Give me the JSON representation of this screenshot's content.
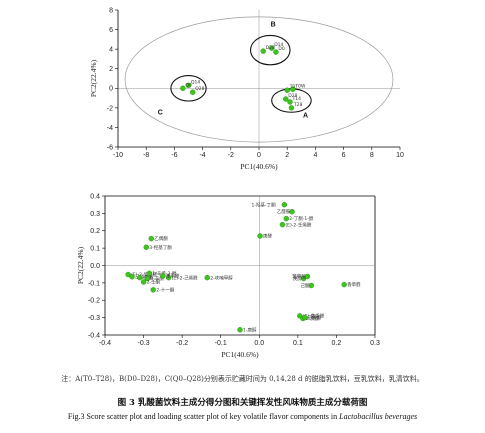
{
  "chart_data": [
    {
      "type": "scatter",
      "xlabel": "PC1(40.6%)",
      "ylabel": "PC2(22.4%)",
      "xlim": [
        -10,
        10
      ],
      "ylim": [
        -6,
        8
      ],
      "xticks": [
        "-10",
        "-8",
        "-6",
        "-4",
        "-2",
        "0",
        "2",
        "4",
        "6",
        "8",
        "10"
      ],
      "yticks": [
        "-6",
        "-4",
        "-2",
        "0",
        "2",
        "4",
        "6",
        "8"
      ],
      "groups": [
        {
          "label": "A",
          "points": [
            {
              "name": "T0W",
              "x": 2.4,
              "y": -0.1
            },
            {
              "name": "T0",
              "x": 2.0,
              "y": -0.2
            },
            {
              "name": "T14",
              "x": 2.2,
              "y": -1.4
            },
            {
              "name": "T28",
              "x": 2.3,
              "y": -2.0
            },
            {
              "name": "D28",
              "x": 1.9,
              "y": -1.1
            }
          ]
        },
        {
          "label": "B",
          "points": [
            {
              "name": "D14",
              "x": 0.9,
              "y": 4.1
            },
            {
              "name": "D0",
              "x": 1.2,
              "y": 3.7
            },
            {
              "name": "D28",
              "x": 0.3,
              "y": 3.8
            }
          ]
        },
        {
          "label": "C",
          "points": [
            {
              "name": "Q14",
              "x": -5.0,
              "y": 0.3
            },
            {
              "name": "Q0",
              "x": -5.4,
              "y": 0.0
            },
            {
              "name": "Q28",
              "x": -4.7,
              "y": -0.4
            }
          ]
        }
      ],
      "group_labels": [
        {
          "text": "A",
          "x": 3.3,
          "y": -3.0
        },
        {
          "text": "B",
          "x": 1.0,
          "y": 6.3
        },
        {
          "text": "C",
          "x": -7.0,
          "y": -2.7
        }
      ]
    },
    {
      "type": "scatter",
      "xlabel": "PC1(40.6%)",
      "ylabel": "PC2(22.4%)",
      "xlim": [
        -0.4,
        0.3
      ],
      "ylim": [
        -0.4,
        0.4
      ],
      "xticks": [
        "-0.4",
        "-0.3",
        "-0.2",
        "-0.1",
        "0.0",
        "0.1",
        "0.2",
        "0.3"
      ],
      "yticks": [
        "-0.4",
        "-0.3",
        "-0.2",
        "-0.1",
        "0.0",
        "0.1",
        "0.2",
        "0.3",
        "0.4"
      ],
      "points": [
        {
          "name": "1-羟基-丁酮",
          "x": 0.065,
          "y": 0.35
        },
        {
          "name": "乙醛胺",
          "x": 0.085,
          "y": 0.31
        },
        {
          "name": "2-丁酮-1-醇",
          "x": 0.07,
          "y": 0.27
        },
        {
          "name": "(E)-2-壬烯醛",
          "x": 0.06,
          "y": 0.235
        },
        {
          "name": "庚醛",
          "x": 0.002,
          "y": 0.17
        },
        {
          "name": "乙偶酮",
          "x": -0.28,
          "y": 0.155
        },
        {
          "name": "3-羟基丁酮",
          "x": -0.293,
          "y": 0.105
        },
        {
          "name": "(E)-2-癸烯醛",
          "x": -0.34,
          "y": -0.052
        },
        {
          "name": "己酸乙酯",
          "x": -0.33,
          "y": -0.065
        },
        {
          "name": "壬醛",
          "x": -0.31,
          "y": -0.07
        },
        {
          "name": "1-辛烯-3-醇",
          "x": -0.285,
          "y": -0.045
        },
        {
          "name": "3-辛酮",
          "x": -0.29,
          "y": -0.075
        },
        {
          "name": "2-壬酮",
          "x": -0.3,
          "y": -0.095
        },
        {
          "name": "2-十一酮",
          "x": -0.275,
          "y": -0.14
        },
        {
          "name": "(E)-2-己烯醛",
          "x": -0.235,
          "y": -0.07
        },
        {
          "name": "苯甲醛",
          "x": -0.25,
          "y": -0.06
        },
        {
          "name": "2-呋喃甲醇",
          "x": -0.135,
          "y": -0.07
        },
        {
          "name": "庚醇",
          "x": 0.115,
          "y": -0.075
        },
        {
          "name": "苯甲酸",
          "x": 0.125,
          "y": -0.063
        },
        {
          "name": "己酸",
          "x": 0.135,
          "y": -0.115
        },
        {
          "name": "香草醛",
          "x": 0.22,
          "y": -0.11
        },
        {
          "name": "(E)-茴香醛",
          "x": 0.105,
          "y": -0.29
        },
        {
          "name": "2-庚酮",
          "x": 0.113,
          "y": -0.305
        },
        {
          "name": "己酸酯",
          "x": 0.118,
          "y": -0.3
        },
        {
          "name": "1-庚醇",
          "x": -0.05,
          "y": -0.37
        }
      ]
    }
  ],
  "caption": {
    "note": "注：A(T0–T28)，B(D0–D28)，C(Q0–Q28)分别表示贮藏时间为 0,14,28 d 的脱脂乳饮料，豆乳饮料，乳清饮料。",
    "title_cn": "图 3   乳酸菌饮料主成分得分图和关键挥发性风味物质主成分载荷图",
    "title_en_plain": "Fig.3   Score scatter plot and loading scatter plot of key volatile flavor components in ",
    "title_en_italic": "Lactobacillus beverages"
  },
  "colors": {
    "point": "#3fc41f",
    "point_edge": "#1e8c0d",
    "axis": "#000000",
    "ellipse": "#9a9a9a"
  }
}
